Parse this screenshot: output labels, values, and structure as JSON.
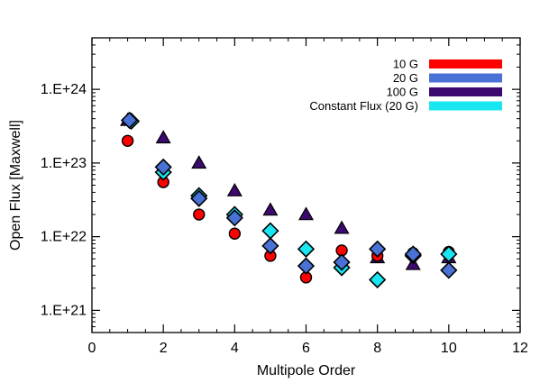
{
  "chart_data": {
    "type": "scatter",
    "title": "",
    "xlabel": "Multipole Order",
    "ylabel": "Open Flux [Maxwell]",
    "xlim": [
      0,
      12
    ],
    "ylim": [
      5e+20,
      5e+24
    ],
    "yscale": "log",
    "x_ticks": [
      {
        "value": 0,
        "label": "0"
      },
      {
        "value": 2,
        "label": "2"
      },
      {
        "value": 4,
        "label": "4"
      },
      {
        "value": 6,
        "label": "6"
      },
      {
        "value": 8,
        "label": "8"
      },
      {
        "value": 10,
        "label": "10"
      },
      {
        "value": 12,
        "label": "12"
      }
    ],
    "y_ticks": [
      {
        "value": 1e+21,
        "label": "1.E+21"
      },
      {
        "value": 1e+22,
        "label": "1.E+22"
      },
      {
        "value": 1e+23,
        "label": "1.E+23"
      },
      {
        "value": 1e+24,
        "label": "1.E+24"
      }
    ],
    "grid": false,
    "legend_position": "top-right",
    "series": [
      {
        "name": "10 G",
        "color": "#ff0000",
        "marker": "circle",
        "points": [
          [
            1,
            2e+23
          ],
          [
            2,
            5.5e+22
          ],
          [
            3,
            2e+22
          ],
          [
            4,
            1.1e+22
          ],
          [
            5,
            5.5e+21
          ],
          [
            6,
            2.8e+21
          ],
          [
            7,
            6.5e+21
          ],
          [
            8,
            5.5e+21
          ],
          [
            9,
            6e+21
          ],
          [
            10,
            6.2e+21
          ]
        ]
      },
      {
        "name": "20 G",
        "color": "#4a72d6",
        "marker": "diamond",
        "points": [
          [
            1.05,
            3.8e+23
          ],
          [
            2,
            8.8e+22
          ],
          [
            3,
            3.3e+22
          ],
          [
            4,
            1.8e+22
          ],
          [
            5,
            7.5e+21
          ],
          [
            6,
            4e+21
          ],
          [
            7,
            4.5e+21
          ],
          [
            8,
            6.8e+21
          ],
          [
            9,
            5.8e+21
          ],
          [
            10,
            3.5e+21
          ]
        ]
      },
      {
        "name": "100 G",
        "color": "#3c0a6e",
        "marker": "triangle",
        "points": [
          [
            1,
            3.8e+23
          ],
          [
            2,
            2.2e+23
          ],
          [
            3,
            1e+23
          ],
          [
            4,
            4.2e+22
          ],
          [
            5,
            2.3e+22
          ],
          [
            6,
            2e+22
          ],
          [
            7,
            1.3e+22
          ],
          [
            8,
            5.2e+21
          ],
          [
            9,
            4.2e+21
          ],
          [
            10,
            5.2e+21
          ]
        ]
      },
      {
        "name": "Constant Flux (20 G)",
        "color": "#19e6f0",
        "marker": "diamond",
        "points": [
          [
            1.1,
            3.7e+23
          ],
          [
            2,
            7.5e+22
          ],
          [
            3,
            3.6e+22
          ],
          [
            4,
            2e+22
          ],
          [
            5,
            1.2e+22
          ],
          [
            6,
            6.8e+21
          ],
          [
            7,
            3.8e+21
          ],
          [
            8,
            2.6e+21
          ],
          [
            9,
            5.5e+21
          ],
          [
            10,
            5.8e+21
          ]
        ]
      }
    ]
  }
}
